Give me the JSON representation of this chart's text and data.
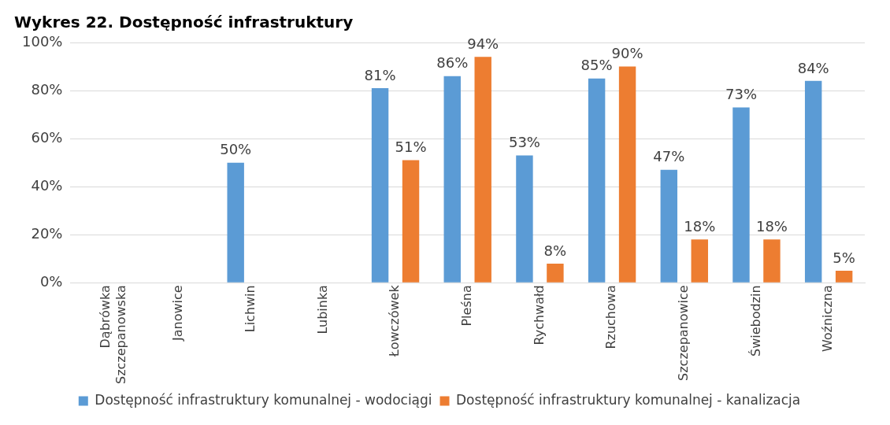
{
  "chart_data": {
    "type": "bar",
    "title": "Wykres 22. Dostępność infrastruktury",
    "categories": [
      "Dąbrówka Szczepanowska",
      "Janowice",
      "Lichwin",
      "Lubinka",
      "Łowczówek",
      "Pleśna",
      "Rychwałd",
      "Rzuchowa",
      "Szczepanowice",
      "Świebodzin",
      "Woźniczna"
    ],
    "series": [
      {
        "name": "Dostępność infrastruktury komunalnej - wodociągi",
        "color": "#5b9bd5",
        "values": [
          null,
          null,
          50,
          null,
          81,
          86,
          53,
          85,
          47,
          73,
          84
        ],
        "value_labels": [
          null,
          null,
          "50%",
          null,
          "81%",
          "86%",
          "53%",
          "85%",
          "47%",
          "73%",
          "84%"
        ]
      },
      {
        "name": "Dostępność infrastruktury komunalnej - kanalizacja",
        "color": "#ed7d31",
        "values": [
          null,
          null,
          null,
          null,
          51,
          94,
          8,
          90,
          18,
          18,
          5
        ],
        "value_labels": [
          null,
          null,
          null,
          null,
          "51%",
          "94%",
          "8%",
          "90%",
          "18%",
          "18%",
          "5%"
        ]
      }
    ],
    "ylim": [
      0,
      100
    ],
    "yticks": [
      {
        "value": 0,
        "label": "0%"
      },
      {
        "value": 20,
        "label": "20%"
      },
      {
        "value": 40,
        "label": "40%"
      },
      {
        "value": 60,
        "label": "60%"
      },
      {
        "value": 80,
        "label": "80%"
      },
      {
        "value": 100,
        "label": "100%"
      }
    ],
    "grid": "y",
    "legend": "bottom"
  }
}
